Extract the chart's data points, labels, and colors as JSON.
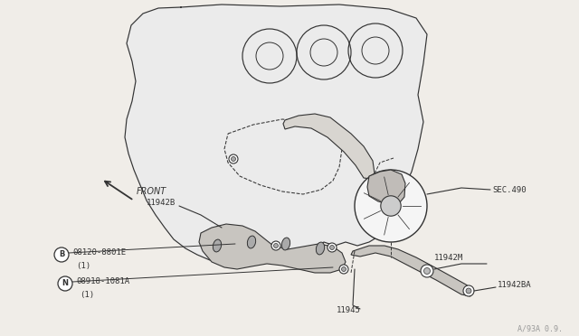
{
  "bg_color": "#f0ede8",
  "line_color": "#333333",
  "text_color": "#333333",
  "watermark": "A/93A 0.9.",
  "labels": {
    "front": "FRONT",
    "sec490": "SEC.490",
    "11942B": "11942B",
    "11942M": "11942M",
    "11942BA": "11942BA",
    "11945": "11945",
    "bolt_B": "08120-8801E",
    "bolt_B_qty": "(1)",
    "bolt_N": "08918-1081A",
    "bolt_N_qty": "(1)",
    "B_symbol": "B",
    "N_symbol": "N"
  }
}
